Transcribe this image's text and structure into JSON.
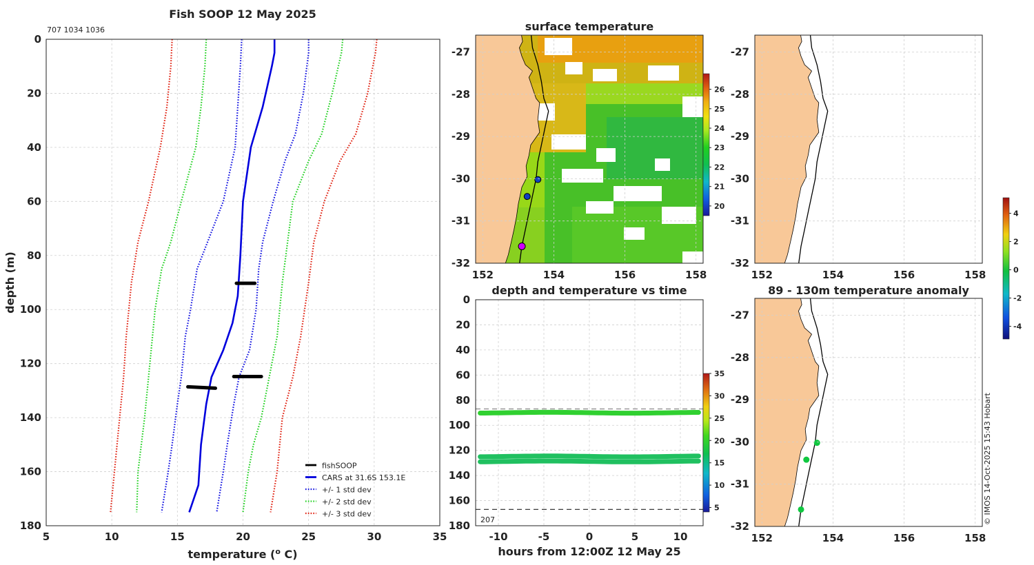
{
  "colors": {
    "land": "#f8c898",
    "cars": "#0000dd",
    "std1": "#1010e0",
    "std2": "#20d020",
    "std3": "#e02010",
    "fish": "#000000",
    "track": "#000000"
  },
  "chart_data": [
    {
      "id": "profile",
      "type": "line",
      "title": "Fish SOOP 12 May 2025",
      "subtitle": "707 1034 1036",
      "xlabel": "temperature (o C)",
      "ylabel": "depth (m)",
      "xlim": [
        5,
        35
      ],
      "ylim": [
        180,
        0
      ],
      "xticks": [
        "5",
        "10",
        "15",
        "20",
        "25",
        "30",
        "35"
      ],
      "yticks": [
        "0",
        "20",
        "40",
        "60",
        "80",
        "100",
        "120",
        "140",
        "160",
        "180"
      ],
      "legend": [
        "fishSOOP",
        "CARS at 31.6S 153.1E",
        "+/- 1 std dev",
        "+/- 2 std dev",
        "+/- 3 std dev"
      ],
      "series": [
        {
          "name": "CARS at 31.6S 153.1E",
          "style": "solid",
          "color": "cars",
          "x": [
            22.4,
            22.4,
            22.2,
            21.5,
            20.6,
            20.0,
            19.8,
            19.6,
            19.2,
            18.5,
            17.6,
            17.2,
            16.8,
            16.6,
            15.9
          ],
          "y": [
            0,
            5,
            10,
            25,
            40,
            60,
            80,
            95,
            105,
            115,
            125,
            135,
            150,
            165,
            175
          ]
        },
        {
          "name": "+1 std",
          "style": "dotted",
          "color": "std1",
          "x": [
            25.0,
            25.0,
            24.6,
            24.0,
            23.2,
            22.3,
            21.5,
            21.2,
            21.0,
            20.5,
            19.7,
            19.3,
            18.8,
            18.5,
            18.0
          ],
          "y": [
            0,
            5,
            20,
            35,
            45,
            60,
            75,
            85,
            100,
            115,
            125,
            135,
            150,
            160,
            175
          ]
        },
        {
          "name": "-1 std",
          "style": "dotted",
          "color": "std1",
          "x": [
            19.9,
            19.8,
            19.6,
            19.4,
            18.5,
            17.3,
            16.5,
            16.0,
            15.6,
            15.3,
            15.0,
            14.6,
            14.3,
            13.8
          ],
          "y": [
            0,
            10,
            25,
            40,
            60,
            75,
            85,
            100,
            110,
            125,
            135,
            150,
            160,
            175
          ]
        },
        {
          "name": "+2 std",
          "style": "dotted",
          "color": "std2",
          "x": [
            27.6,
            27.5,
            26.8,
            26.0,
            25.0,
            23.8,
            23.4,
            23.0,
            22.6,
            22.0,
            21.4,
            20.8,
            20.4,
            20.0
          ],
          "y": [
            0,
            5,
            20,
            35,
            45,
            60,
            75,
            90,
            110,
            125,
            140,
            150,
            160,
            175
          ]
        },
        {
          "name": "-2 std",
          "style": "dotted",
          "color": "std2",
          "x": [
            17.2,
            17.1,
            16.8,
            16.4,
            15.3,
            14.5,
            13.8,
            13.3,
            13.0,
            12.8,
            12.5,
            12.0,
            11.9
          ],
          "y": [
            0,
            10,
            25,
            40,
            60,
            75,
            85,
            100,
            115,
            125,
            140,
            160,
            175
          ]
        },
        {
          "name": "+3 std",
          "style": "dotted",
          "color": "std3",
          "x": [
            30.2,
            30.1,
            29.5,
            28.6,
            27.4,
            26.2,
            25.4,
            25.0,
            24.4,
            23.8,
            23.0,
            22.6,
            22.1
          ],
          "y": [
            0,
            5,
            20,
            35,
            45,
            60,
            75,
            90,
            110,
            125,
            140,
            160,
            175
          ]
        },
        {
          "name": "-3 std",
          "style": "dotted",
          "color": "std3",
          "x": [
            14.6,
            14.5,
            14.2,
            13.7,
            12.8,
            12.0,
            11.5,
            11.1,
            10.9,
            10.6,
            10.2,
            9.9
          ],
          "y": [
            0,
            10,
            25,
            40,
            60,
            75,
            90,
            110,
            125,
            140,
            160,
            175
          ]
        }
      ],
      "fish_points": [
        {
          "x1": 19.5,
          "x2": 20.9,
          "y": 90.3
        },
        {
          "x1": 19.3,
          "x2": 21.4,
          "y": 124.8
        },
        {
          "x1": 15.8,
          "x2": 17.9,
          "y": 128.6
        }
      ]
    },
    {
      "id": "sst",
      "type": "heatmap",
      "title": "surface temperature",
      "xlim": [
        151.8,
        158.2
      ],
      "ylim": [
        -32,
        -26.6
      ],
      "xticks": [
        "152",
        "154",
        "156",
        "158"
      ],
      "yticks": [
        "-27",
        "-28",
        "-29",
        "-30",
        "-31",
        "-32"
      ],
      "colorbar_ticks": [
        "20",
        "21",
        "22",
        "23",
        "24",
        "25",
        "26"
      ],
      "colorbar_range": [
        19.5,
        26.8
      ],
      "markers": [
        {
          "lon": 153.55,
          "lat": -30.02,
          "color": "#1040c0"
        },
        {
          "lon": 153.25,
          "lat": -30.42,
          "color": "#1040c0"
        },
        {
          "lon": 153.1,
          "lat": -31.6,
          "color": "#d000ff"
        }
      ]
    },
    {
      "id": "timeseries",
      "type": "scatter",
      "title": "depth and temperature vs time",
      "xlabel": "hours from 12:00Z 12 May 25",
      "xlim": [
        -12.5,
        12.5
      ],
      "ylim": [
        180,
        0
      ],
      "xticks": [
        "-10",
        "-5",
        "0",
        "5",
        "10"
      ],
      "yticks": [
        "0",
        "20",
        "40",
        "60",
        "80",
        "100",
        "120",
        "140",
        "160",
        "180"
      ],
      "colorbar_ticks": [
        "5",
        "10",
        "15",
        "20",
        "25",
        "30",
        "35"
      ],
      "colorbar_range": [
        4,
        35
      ],
      "dashed_lines": [
        {
          "depth": 87,
          "color": "#888888"
        },
        {
          "depth": 167,
          "color": "#222222"
        }
      ],
      "annotation": "207",
      "series": [
        {
          "depth": 90,
          "temp": 20.6
        },
        {
          "depth": 124.8,
          "temp": 19.5
        },
        {
          "depth": 128.8,
          "temp": 19.0
        }
      ]
    },
    {
      "id": "map_empty",
      "type": "map",
      "xlim": [
        151.8,
        158.2
      ],
      "ylim": [
        -32,
        -26.6
      ],
      "xticks": [
        "152",
        "154",
        "156",
        "158"
      ],
      "yticks": [
        "-27",
        "-28",
        "-29",
        "-30",
        "-31",
        "-32"
      ]
    },
    {
      "id": "anomaly",
      "type": "scatter",
      "title": "89 - 130m temperature anomaly",
      "xlim": [
        151.8,
        158.2
      ],
      "ylim": [
        -32,
        -26.6
      ],
      "xticks": [
        "152",
        "154",
        "156",
        "158"
      ],
      "yticks": [
        "-27",
        "-28",
        "-29",
        "-30",
        "-31",
        "-32"
      ],
      "colorbar_ticks": [
        "-4",
        "-2",
        "0",
        "2",
        "4"
      ],
      "colorbar_range": [
        -4.9,
        5.1
      ],
      "points": [
        {
          "lon": 153.55,
          "lat": -30.02,
          "anom": 0.3
        },
        {
          "lon": 153.25,
          "lat": -30.42,
          "anom": 0.3
        },
        {
          "lon": 153.1,
          "lat": -31.6,
          "anom": 0.3
        }
      ]
    }
  ],
  "credit": "© IMOS 14-Oct-2025 15:43 Hobart"
}
